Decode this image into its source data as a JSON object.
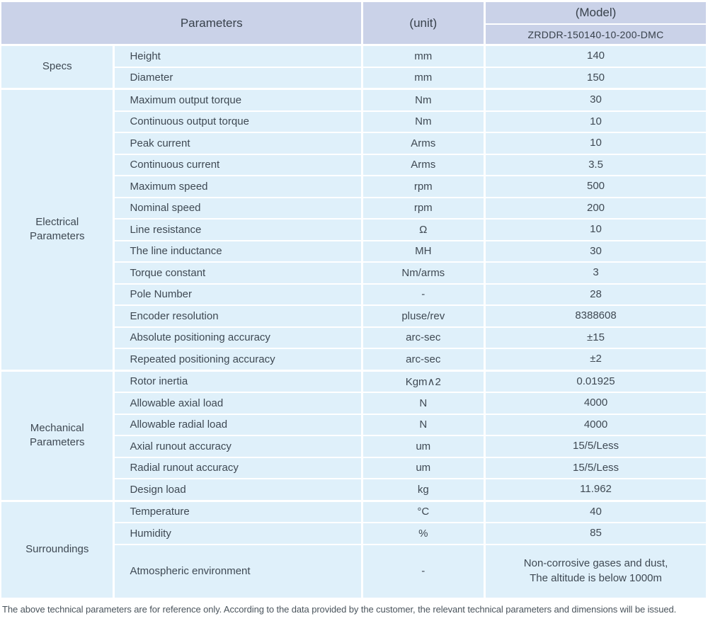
{
  "colors": {
    "header_bg": "#cad2e8",
    "row_bg": "#dff0fa",
    "divider": "#ffffff",
    "text": "#3f4953"
  },
  "table": {
    "header": {
      "parameters": "Parameters",
      "unit": "(unit)",
      "model": "(Model)",
      "model_value": "ZRDDR-150140-10-200-DMC"
    },
    "groups": [
      {
        "label": "Specs",
        "rows": [
          {
            "param": "Height",
            "unit": "mm",
            "value": "140"
          },
          {
            "param": "Diameter",
            "unit": "mm",
            "value": "150"
          }
        ]
      },
      {
        "label": "Electrical Parameters",
        "rows": [
          {
            "param": "Maximum output torque",
            "unit": "Nm",
            "value": "30"
          },
          {
            "param": "Continuous output torque",
            "unit": "Nm",
            "value": "10"
          },
          {
            "param": "Peak current",
            "unit": "Arms",
            "value": "10"
          },
          {
            "param": "Continuous current",
            "unit": "Arms",
            "value": "3.5"
          },
          {
            "param": "Maximum speed",
            "unit": "rpm",
            "value": "500"
          },
          {
            "param": "Nominal speed",
            "unit": "rpm",
            "value": "200"
          },
          {
            "param": "Line resistance",
            "unit": "Ω",
            "value": "10"
          },
          {
            "param": "The line inductance",
            "unit": "MH",
            "value": "30"
          },
          {
            "param": "Torque constant",
            "unit": "Nm/arms",
            "value": "3"
          },
          {
            "param": "Pole Number",
            "unit": "-",
            "value": "28"
          },
          {
            "param": "Encoder resolution",
            "unit": "pluse/rev",
            "value": "8388608"
          },
          {
            "param": "Absolute positioning accuracy",
            "unit": "arc-sec",
            "value": "±15"
          },
          {
            "param": "Repeated positioning accuracy",
            "unit": "arc-sec",
            "value": "±2"
          }
        ]
      },
      {
        "label": "Mechanical Parameters",
        "rows": [
          {
            "param": "Rotor inertia",
            "unit": "Kgm∧2",
            "value": "0.01925"
          },
          {
            "param": "Allowable axial load",
            "unit": "N",
            "value": "4000"
          },
          {
            "param": "Allowable radial load",
            "unit": "N",
            "value": "4000"
          },
          {
            "param": "Axial runout accuracy",
            "unit": "um",
            "value": "15/5/Less"
          },
          {
            "param": "Radial runout accuracy",
            "unit": "um",
            "value": "15/5/Less"
          },
          {
            "param": "Design load",
            "unit": "kg",
            "value": "11.962"
          }
        ]
      },
      {
        "label": "Surroundings",
        "rows": [
          {
            "param": "Temperature",
            "unit": "°C",
            "value": "40"
          },
          {
            "param": "Humidity",
            "unit": "%",
            "value": "85"
          },
          {
            "param": "Atmospheric environment",
            "unit": "-",
            "value": "Non-corrosive gases and dust,\nThe altitude is below 1000m"
          }
        ]
      }
    ]
  },
  "footnote": "The above technical parameters are for reference only. According to the data provided by the customer, the relevant technical parameters and dimensions will be issued."
}
